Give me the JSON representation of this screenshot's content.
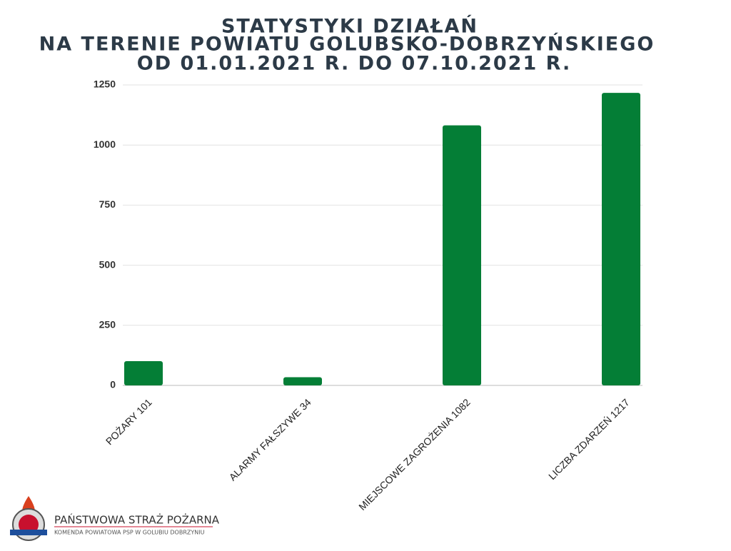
{
  "chart_data": {
    "type": "bar",
    "title": [
      "STATYSTYKI DZIAŁAŃ",
      "NA TERENIE POWIATU GOLUBSKO-DOBRZYŃSKIEGO",
      "OD 01.01.2021 R. DO 07.10.2021 R."
    ],
    "categories": [
      "POŻARY 101",
      "ALARMY FAŁSZYWE 34",
      "MIEJSCOWE ZAGROŻENIA 1082",
      "LICZBA ZDARZEŃ 1217"
    ],
    "values": [
      101,
      34,
      1082,
      1217
    ],
    "color": "#047e36",
    "ylim": [
      0,
      1250
    ],
    "yticks": [
      0,
      250,
      500,
      750,
      1000,
      1250
    ],
    "grid": true
  },
  "footer": {
    "org": "PAŃSTWOWA STRAŻ POŻARNA",
    "unit": "KOMENDA POWIATOWA PSP W GOLUBIU DOBRZYNIU"
  }
}
